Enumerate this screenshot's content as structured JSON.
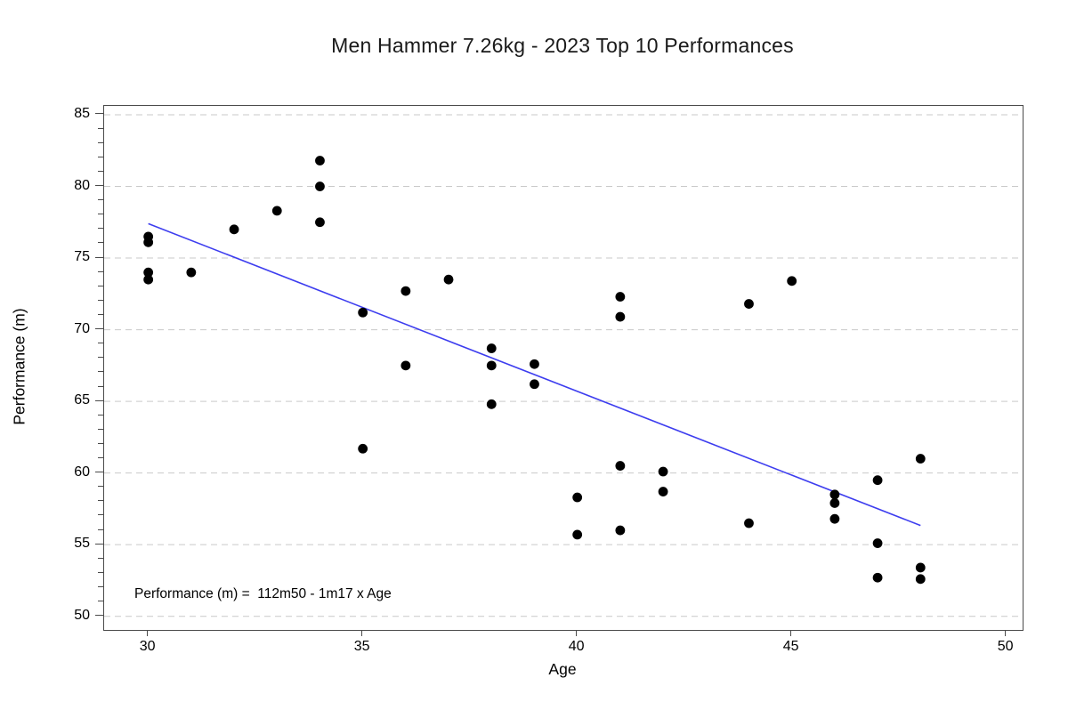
{
  "title": "Men Hammer 7.26kg - 2023 Top 10 Performances",
  "annotation": "Performance (m) =  112m50 - 1m17 x Age",
  "chart_data": {
    "type": "scatter",
    "title": "Men Hammer 7.26kg - 2023 Top 10 Performances",
    "xlabel": "Age",
    "ylabel": "Performance (m)",
    "xlim": [
      28.97,
      50.38
    ],
    "ylim": [
      49.05,
      85.62
    ],
    "x_ticks": [
      30,
      35,
      40,
      45,
      50
    ],
    "y_ticks": [
      50,
      55,
      60,
      65,
      70,
      75,
      80,
      85
    ],
    "y_minor_tick_step": 1,
    "grid": "horizontal-dashed",
    "legend": "none",
    "points": [
      [
        30,
        76.5
      ],
      [
        30,
        76.1
      ],
      [
        30,
        74.0
      ],
      [
        30,
        73.5
      ],
      [
        31,
        74.0
      ],
      [
        32,
        77.0
      ],
      [
        33,
        78.3
      ],
      [
        34,
        81.8
      ],
      [
        34,
        80.0
      ],
      [
        34,
        77.5
      ],
      [
        35,
        71.2
      ],
      [
        35,
        61.7
      ],
      [
        36,
        72.7
      ],
      [
        36,
        67.5
      ],
      [
        37,
        73.5
      ],
      [
        38,
        68.7
      ],
      [
        38,
        67.5
      ],
      [
        38,
        64.8
      ],
      [
        39,
        67.6
      ],
      [
        39,
        66.2
      ],
      [
        40,
        58.3
      ],
      [
        40,
        55.7
      ],
      [
        41,
        72.3
      ],
      [
        41,
        70.9
      ],
      [
        41,
        60.5
      ],
      [
        41,
        56.0
      ],
      [
        42,
        60.1
      ],
      [
        42,
        58.7
      ],
      [
        44,
        71.8
      ],
      [
        44,
        56.5
      ],
      [
        45,
        73.4
      ],
      [
        46,
        58.5
      ],
      [
        46,
        57.9
      ],
      [
        46,
        56.8
      ],
      [
        47,
        59.5
      ],
      [
        47,
        55.1
      ],
      [
        47,
        52.7
      ],
      [
        48,
        61.0
      ],
      [
        48,
        53.4
      ],
      [
        48,
        52.6
      ]
    ],
    "trend_line": {
      "equation_text": "Performance (m) =  112m50 - 1m17 x Age",
      "intercept": 112.5,
      "slope": -1.17,
      "x_start": 30,
      "x_end": 48
    },
    "colors": {
      "point": "#000000",
      "trend_line": "#3d3def",
      "grid": "#c9c9c9",
      "axis": "#4a4a4a",
      "text": "#000000",
      "background": "#ffffff"
    }
  }
}
